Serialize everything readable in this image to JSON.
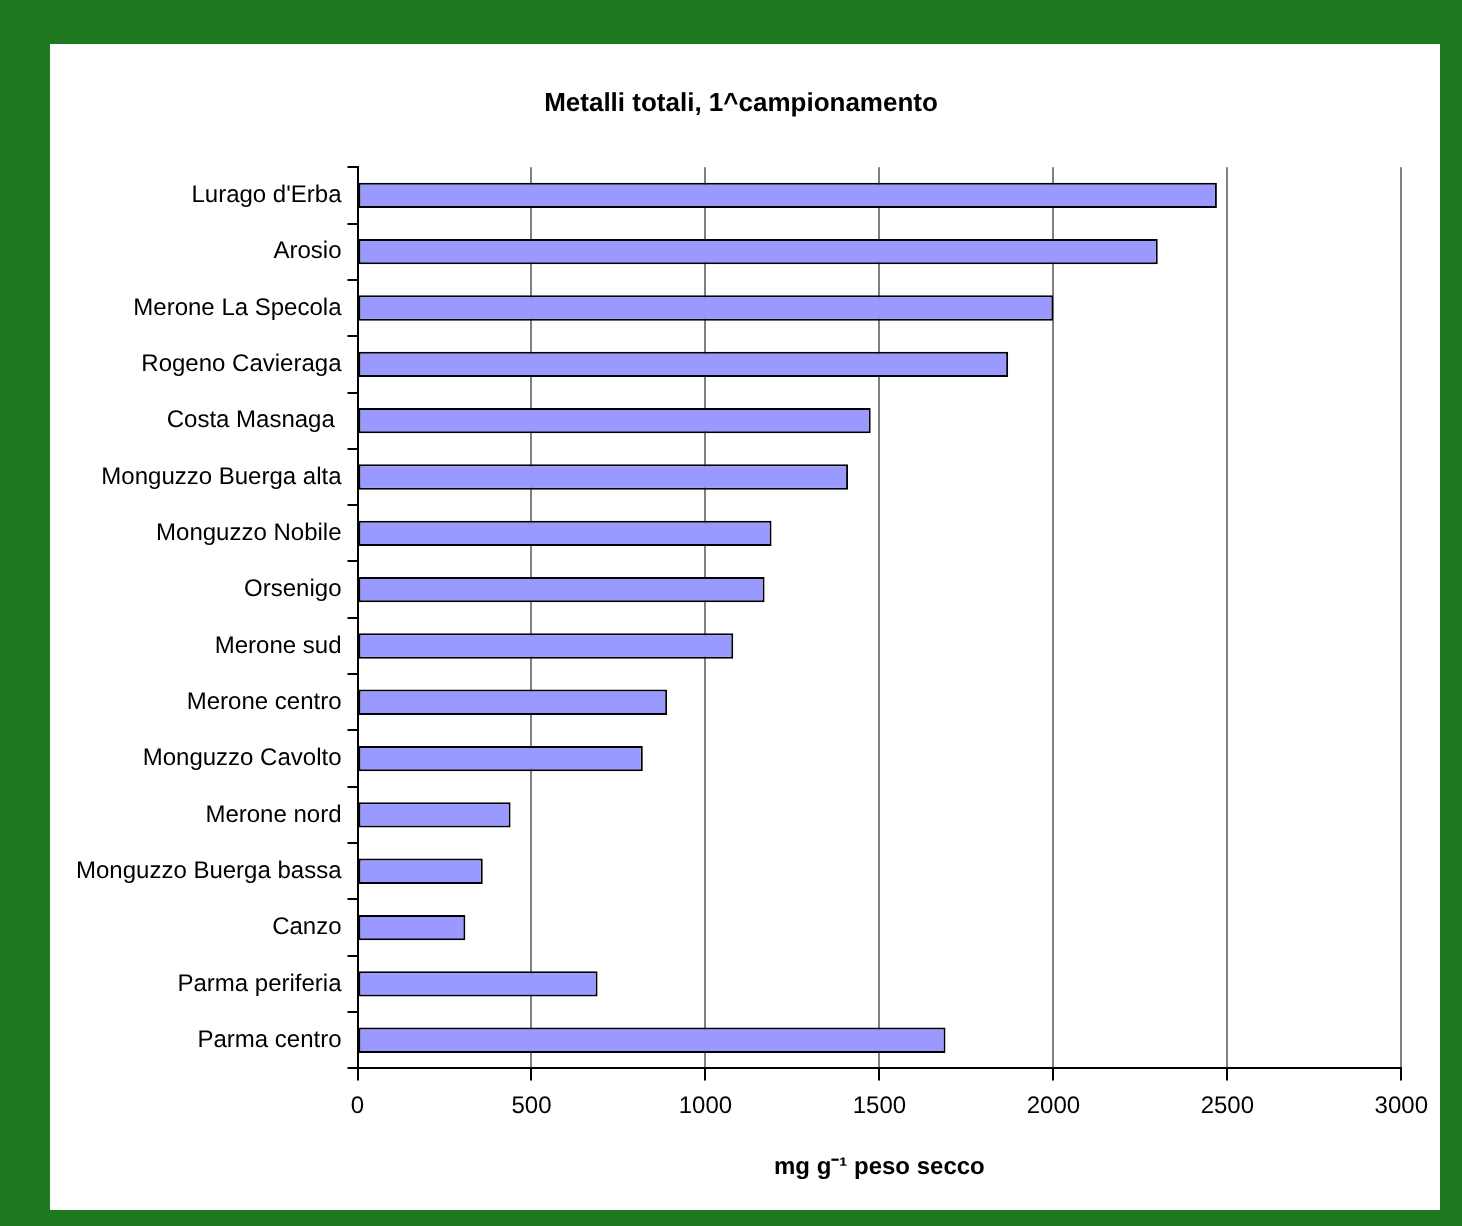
{
  "chart_data": {
    "type": "bar",
    "orientation": "horizontal",
    "title": "Metalli totali, 1^campionamento",
    "xlabel": "mg g⁻¹ peso secco",
    "categories": [
      "Lurago d'Erba",
      "Arosio",
      "Merone La Specola",
      "Rogeno Cavieraga",
      "Costa Masnaga ",
      "Monguzzo Buerga alta",
      "Monguzzo Nobile",
      "Orsenigo",
      "Merone sud",
      "Merone centro",
      "Monguzzo Cavolto",
      "Merone nord",
      "Monguzzo Buerga bassa",
      "Canzo",
      "Parma periferia",
      "Parma centro"
    ],
    "values": [
      2470,
      2300,
      2000,
      1870,
      1475,
      1410,
      1190,
      1170,
      1080,
      890,
      820,
      440,
      360,
      310,
      690,
      1690
    ],
    "color": "#9999ff",
    "xlim": [
      0,
      3000
    ],
    "xticks": [
      0,
      500,
      1000,
      1500,
      2000,
      2500,
      3000
    ],
    "grid": "x"
  }
}
